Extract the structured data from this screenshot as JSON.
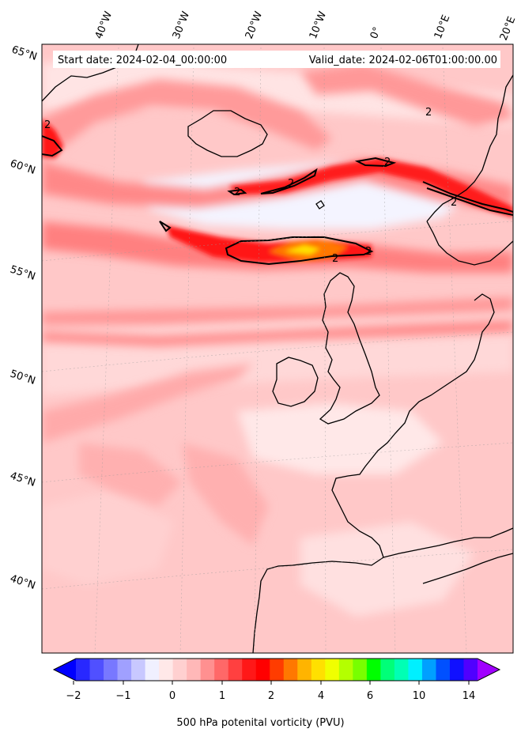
{
  "header": {
    "start_date": "Start date: 2024-02-04_00:00:00",
    "valid_date": "Valid_date: 2024-02-06T01:00:00.00"
  },
  "lon_labels": [
    "40°W",
    "30°W",
    "20°W",
    "10°W",
    "0°",
    "10°E",
    "20°E"
  ],
  "lat_labels": [
    "65°N",
    "60°N",
    "55°N",
    "50°N",
    "45°N",
    "40°N"
  ],
  "contour_labels": [
    "2",
    "2",
    "2",
    "2",
    "2",
    "2",
    "2",
    "2"
  ],
  "colorbar": {
    "ticks": [
      "−2",
      "−1",
      "0",
      "1",
      "2",
      "4",
      "6",
      "10",
      "14"
    ],
    "caption": "500 hPa potenital vorticity (PVU)",
    "colors": [
      "#0000ff",
      "#2828ff",
      "#5050ff",
      "#7878ff",
      "#a0a0ff",
      "#c8c8ff",
      "#f0f0ff",
      "#ffe8e8",
      "#ffd0d0",
      "#ffb8b8",
      "#ff9090",
      "#ff6868",
      "#ff4040",
      "#ff1818",
      "#ff0000",
      "#ff3c00",
      "#ff7800",
      "#ffb400",
      "#ffe000",
      "#f0ff00",
      "#b4ff00",
      "#78ff00",
      "#00ff00",
      "#00ff78",
      "#00ffb4",
      "#00f0ff",
      "#00a0ff",
      "#0050ff",
      "#1010ff",
      "#5000ff",
      "#a000ff"
    ]
  }
}
